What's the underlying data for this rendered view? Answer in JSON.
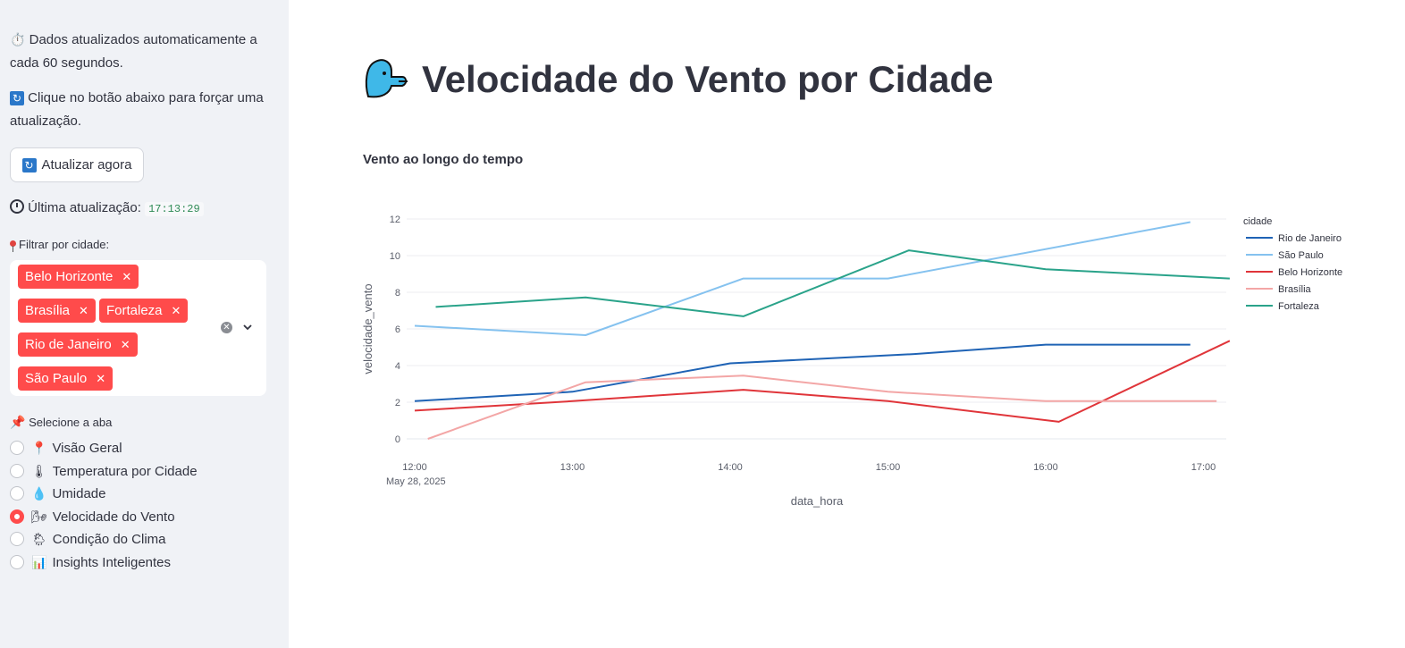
{
  "sidebar": {
    "auto_update_text": "Dados atualizados automaticamente a cada 60 segundos.",
    "force_update_text": "Clique no botão abaixo para forçar uma atualização.",
    "refresh_button_label": "Atualizar agora",
    "last_update_label": "Última atualização:",
    "last_update_time": "17:13:29",
    "filter_label": "Filtrar por cidade:",
    "selected_cities": [
      "Belo Horizonte",
      "Brasília",
      "Fortaleza",
      "Rio de Janeiro",
      "São Paulo"
    ],
    "tab_select_label": "Selecione a aba",
    "tabs": [
      {
        "label": "Visão Geral",
        "emoji": "📍",
        "selected": false
      },
      {
        "label": "Temperatura por Cidade",
        "emoji": "🌡",
        "selected": false
      },
      {
        "label": "Umidade",
        "emoji": "💧",
        "selected": false
      },
      {
        "label": "Velocidade do Vento",
        "emoji": "🌬",
        "selected": true
      },
      {
        "label": "Condição do Clima",
        "emoji": "🌦",
        "selected": false
      },
      {
        "label": "Insights Inteligentes",
        "emoji": "📊",
        "selected": false
      }
    ]
  },
  "main": {
    "title": "Velocidade do Vento por Cidade",
    "chart_title": "Vento ao longo do tempo"
  },
  "colors": {
    "accent": "#ff4b4b",
    "sidebar_bg": "#f0f2f6",
    "rio": "#1f63b5",
    "sao_paulo": "#85c2ef",
    "belo_horizonte": "#e0353a",
    "brasilia": "#f3a6a6",
    "fortaleza": "#2aa38a"
  },
  "chart_data": {
    "type": "line",
    "xlabel": "data_hora",
    "ylabel": "velocidade_vento",
    "legend_title": "cidade",
    "legend_placement": "right",
    "grid": true,
    "ylim": [
      0,
      12
    ],
    "x_ticks": [
      "12:00",
      "13:00",
      "14:00",
      "15:00",
      "16:00",
      "17:00"
    ],
    "x_date_label": "May 28, 2025",
    "y_ticks": [
      0,
      2,
      4,
      6,
      8,
      10,
      12
    ],
    "series": [
      {
        "name": "Rio de Janeiro",
        "color": "#1f63b5",
        "points": [
          [
            "12:00",
            2.06
          ],
          [
            "13:00",
            2.57
          ],
          [
            "14:00",
            4.12
          ],
          [
            "15:10",
            4.63
          ],
          [
            "16:00",
            5.14
          ],
          [
            "16:55",
            5.14
          ]
        ]
      },
      {
        "name": "São Paulo",
        "color": "#85c2ef",
        "points": [
          [
            "12:00",
            6.17
          ],
          [
            "13:05",
            5.66
          ],
          [
            "14:05",
            8.75
          ],
          [
            "15:00",
            8.75
          ],
          [
            "16:55",
            11.83
          ]
        ]
      },
      {
        "name": "Belo Horizonte",
        "color": "#e0353a",
        "points": [
          [
            "12:00",
            1.54
          ],
          [
            "13:00",
            2.06
          ],
          [
            "14:05",
            2.68
          ],
          [
            "15:00",
            2.06
          ],
          [
            "16:05",
            0.93
          ],
          [
            "17:10",
            5.35
          ]
        ]
      },
      {
        "name": "Brasília",
        "color": "#f3a6a6",
        "points": [
          [
            "12:05",
            0
          ],
          [
            "13:05",
            3.09
          ],
          [
            "14:05",
            3.45
          ],
          [
            "15:00",
            2.57
          ],
          [
            "16:00",
            2.06
          ],
          [
            "17:05",
            2.06
          ]
        ]
      },
      {
        "name": "Fortaleza",
        "color": "#2aa38a",
        "points": [
          [
            "12:08",
            7.2
          ],
          [
            "13:05",
            7.72
          ],
          [
            "14:05",
            6.69
          ],
          [
            "15:08",
            10.29
          ],
          [
            "16:00",
            9.26
          ],
          [
            "17:10",
            8.75
          ]
        ]
      }
    ]
  }
}
